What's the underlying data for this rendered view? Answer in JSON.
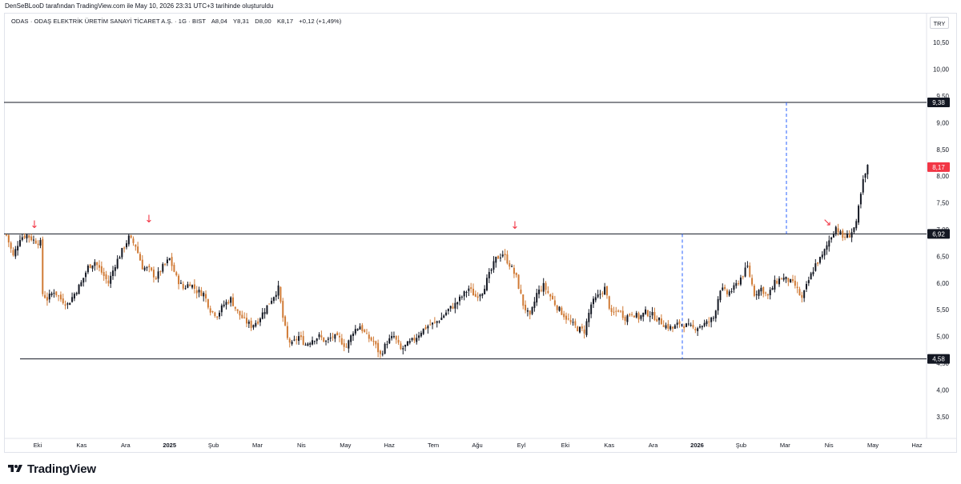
{
  "header": {
    "attribution": "DenSeBLooD tarafından TradingView.com ile May 10, 2026 23:31 UTC+3 tarihinde oluşturuldu"
  },
  "legend": {
    "symbol": "ODAS · ODAŞ ELEKTRİK ÜRETİM SANAYİ TİCARET A.Ş. · 1G · BIST",
    "open": "A8,04",
    "high": "Y8,31",
    "low": "D8,00",
    "close": "K8,17",
    "change": "+0,12 (+1,49%)"
  },
  "currency": "TRY",
  "footer": {
    "brand": "TradingView"
  },
  "colors": {
    "up": "#131722",
    "down": "#d07a35",
    "level_line": "#131722",
    "last_price": "#f23645",
    "arrow": "#f23645",
    "vertical_dashed": "#2962ff"
  },
  "chart_data": {
    "type": "candlestick",
    "y_axis_ticks": [
      "10,50",
      "10,00",
      "9,50",
      "9,00",
      "8,50",
      "8,00",
      "7,50",
      "7,00",
      "6,50",
      "6,00",
      "5,50",
      "5,00",
      "4,50",
      "4,00",
      "3,50"
    ],
    "ylim": [
      3.0,
      11.2
    ],
    "x_axis_labels": [
      "Eki",
      "Kas",
      "Ara",
      "2025",
      "Şub",
      "Mar",
      "Nis",
      "May",
      "Haz",
      "Tem",
      "Ağu",
      "Eyl",
      "Eki",
      "Kas",
      "Ara",
      "2026",
      "Şub",
      "Mar",
      "Nis",
      "May",
      "Haz"
    ],
    "horizontal_levels": [
      {
        "value": 9.38,
        "label": "9,38"
      },
      {
        "value": 6.92,
        "label": "6,92"
      },
      {
        "value": 4.58,
        "label": "4,58"
      }
    ],
    "last_price": {
      "value": 8.17,
      "label": "8,17"
    },
    "price_path": [
      [
        0,
        6.9
      ],
      [
        3,
        6.5
      ],
      [
        6,
        6.85
      ],
      [
        9,
        6.9
      ],
      [
        12,
        6.8
      ],
      [
        15,
        6.75
      ],
      [
        16,
        5.8
      ],
      [
        18,
        5.7
      ],
      [
        21,
        5.85
      ],
      [
        24,
        5.7
      ],
      [
        27,
        5.6
      ],
      [
        30,
        5.8
      ],
      [
        33,
        6.0
      ],
      [
        36,
        6.3
      ],
      [
        39,
        6.4
      ],
      [
        42,
        6.2
      ],
      [
        45,
        6.0
      ],
      [
        48,
        6.35
      ],
      [
        51,
        6.6
      ],
      [
        54,
        6.85
      ],
      [
        57,
        6.7
      ],
      [
        60,
        6.3
      ],
      [
        63,
        6.25
      ],
      [
        66,
        6.1
      ],
      [
        69,
        6.3
      ],
      [
        72,
        6.45
      ],
      [
        75,
        6.1
      ],
      [
        78,
        5.9
      ],
      [
        81,
        6.0
      ],
      [
        84,
        5.85
      ],
      [
        87,
        5.8
      ],
      [
        90,
        5.5
      ],
      [
        93,
        5.4
      ],
      [
        96,
        5.6
      ],
      [
        99,
        5.7
      ],
      [
        102,
        5.45
      ],
      [
        105,
        5.3
      ],
      [
        108,
        5.2
      ],
      [
        111,
        5.3
      ],
      [
        114,
        5.5
      ],
      [
        117,
        5.7
      ],
      [
        120,
        5.9
      ],
      [
        122,
        5.35
      ],
      [
        124,
        4.95
      ],
      [
        126,
        4.85
      ],
      [
        129,
        5.0
      ],
      [
        132,
        4.85
      ],
      [
        135,
        4.95
      ],
      [
        138,
        5.0
      ],
      [
        141,
        4.9
      ],
      [
        144,
        5.0
      ],
      [
        147,
        4.95
      ],
      [
        150,
        4.8
      ],
      [
        153,
        5.1
      ],
      [
        156,
        5.2
      ],
      [
        159,
        5.0
      ],
      [
        162,
        4.9
      ],
      [
        165,
        4.65
      ],
      [
        168,
        4.9
      ],
      [
        171,
        5.0
      ],
      [
        174,
        4.75
      ],
      [
        177,
        4.85
      ],
      [
        180,
        4.95
      ],
      [
        183,
        5.1
      ],
      [
        186,
        5.2
      ],
      [
        189,
        5.25
      ],
      [
        192,
        5.35
      ],
      [
        195,
        5.5
      ],
      [
        198,
        5.6
      ],
      [
        201,
        5.75
      ],
      [
        204,
        5.9
      ],
      [
        207,
        5.75
      ],
      [
        210,
        5.85
      ],
      [
        213,
        6.15
      ],
      [
        216,
        6.45
      ],
      [
        219,
        6.55
      ],
      [
        222,
        6.35
      ],
      [
        225,
        6.1
      ],
      [
        228,
        5.6
      ],
      [
        231,
        5.35
      ],
      [
        234,
        5.8
      ],
      [
        237,
        5.95
      ],
      [
        240,
        5.75
      ],
      [
        243,
        5.55
      ],
      [
        246,
        5.4
      ],
      [
        249,
        5.25
      ],
      [
        252,
        5.15
      ],
      [
        255,
        5.1
      ],
      [
        258,
        5.6
      ],
      [
        261,
        5.75
      ],
      [
        264,
        5.9
      ],
      [
        267,
        5.4
      ],
      [
        270,
        5.5
      ],
      [
        273,
        5.35
      ],
      [
        276,
        5.45
      ],
      [
        279,
        5.35
      ],
      [
        282,
        5.45
      ],
      [
        285,
        5.4
      ],
      [
        288,
        5.3
      ],
      [
        291,
        5.2
      ],
      [
        294,
        5.15
      ],
      [
        297,
        5.25
      ],
      [
        300,
        5.2
      ],
      [
        303,
        5.15
      ],
      [
        306,
        5.2
      ],
      [
        309,
        5.25
      ],
      [
        312,
        5.35
      ],
      [
        315,
        5.9
      ],
      [
        318,
        5.8
      ],
      [
        321,
        5.9
      ],
      [
        324,
        6.1
      ],
      [
        327,
        6.3
      ],
      [
        330,
        5.8
      ],
      [
        333,
        5.9
      ],
      [
        336,
        5.75
      ],
      [
        339,
        6.0
      ],
      [
        342,
        6.1
      ],
      [
        345,
        6.05
      ],
      [
        348,
        5.95
      ],
      [
        351,
        5.7
      ],
      [
        354,
        6.05
      ],
      [
        357,
        6.35
      ],
      [
        360,
        6.5
      ],
      [
        363,
        6.8
      ],
      [
        366,
        7.05
      ],
      [
        369,
        6.85
      ],
      [
        372,
        6.9
      ],
      [
        375,
        7.1
      ],
      [
        376,
        7.4
      ],
      [
        378,
        7.9
      ],
      [
        380,
        8.17
      ]
    ],
    "annotations": {
      "down_arrows": [
        "↓",
        "↓",
        "↓"
      ],
      "diagonal_arrow": "↘"
    }
  }
}
